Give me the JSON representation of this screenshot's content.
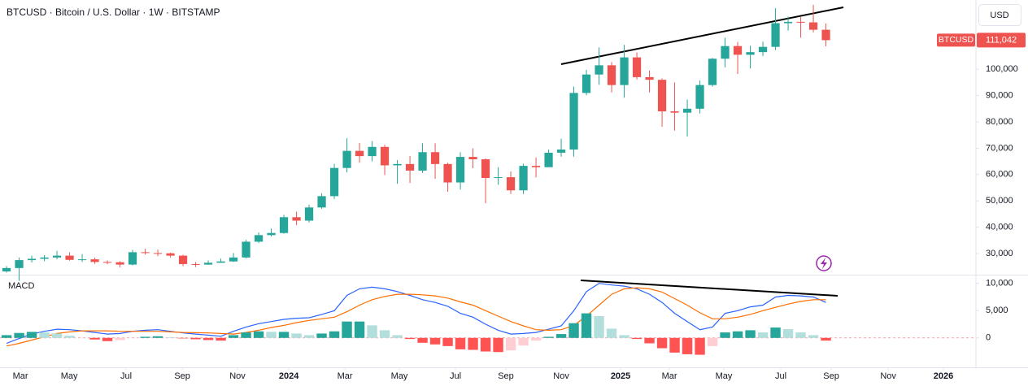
{
  "chart_data": [
    {
      "type": "candlestick",
      "title": "BTCUSD · Bitcoin / U.S. Dollar · 1W · BITSTAMP",
      "currency": "USD",
      "symbol": "BTCUSD",
      "last_label": "111,042",
      "up_color": "#26a69a",
      "down_color": "#ef5350",
      "xlim": [
        -0.52,
        76.9
      ],
      "ylim": [
        21975,
        126300
      ],
      "xticks": [
        {
          "value": 1.1,
          "label": "Mar"
        },
        {
          "value": 4.97,
          "label": "May"
        },
        {
          "value": 9.48,
          "label": "Jul"
        },
        {
          "value": 13.94,
          "label": "Sep"
        },
        {
          "value": 18.32,
          "label": "Nov"
        },
        {
          "value": 22.39,
          "label": "2024"
        },
        {
          "value": 26.84,
          "label": "Mar"
        },
        {
          "value": 31.16,
          "label": "May"
        },
        {
          "value": 35.61,
          "label": "Jul"
        },
        {
          "value": 39.61,
          "label": "Sep"
        },
        {
          "value": 44.0,
          "label": "Nov"
        },
        {
          "value": 48.71,
          "label": "2025"
        },
        {
          "value": 52.58,
          "label": "Mar"
        },
        {
          "value": 56.9,
          "label": "May"
        },
        {
          "value": 61.42,
          "label": "Jul"
        },
        {
          "value": 65.42,
          "label": "Sep"
        },
        {
          "value": 69.94,
          "label": "Nov"
        },
        {
          "value": 74.32,
          "label": "2026"
        }
      ],
      "yticks": [
        {
          "value": 30000,
          "label": "30,000"
        },
        {
          "value": 40000,
          "label": "40,000"
        },
        {
          "value": 50000,
          "label": "50,000"
        },
        {
          "value": 60000,
          "label": "60,000"
        },
        {
          "value": 70000,
          "label": "70,000"
        },
        {
          "value": 80000,
          "label": "80,000"
        },
        {
          "value": 90000,
          "label": "90,000"
        },
        {
          "value": 100000,
          "label": "100,000"
        }
      ],
      "open": [
        23200,
        24500,
        27500,
        28000,
        28500,
        29200,
        27600,
        27800,
        26800,
        26700,
        25800,
        30500,
        30200,
        30100,
        29200,
        26000,
        25800,
        26500,
        27000,
        28500,
        34500,
        37000,
        37800,
        43800,
        42500,
        47500,
        51800,
        62500,
        69000,
        67000,
        70500,
        63500,
        64000,
        61500,
        68500,
        64000,
        57000,
        66700,
        65800,
        58700,
        59000,
        54000,
        63300,
        62800,
        68300,
        69500,
        91000,
        98000,
        101500,
        94000,
        104500,
        97000,
        96000,
        84000,
        83500,
        85000,
        94000,
        104000,
        108800,
        105500,
        106500,
        108500,
        117500,
        118000,
        117800,
        115000
      ],
      "high": [
        25200,
        28500,
        29200,
        29400,
        31000,
        30500,
        29800,
        28400,
        27400,
        27100,
        31400,
        31800,
        31500,
        30300,
        29500,
        26800,
        27400,
        28100,
        30200,
        35200,
        38000,
        39500,
        44700,
        45900,
        48600,
        52900,
        64000,
        73800,
        72000,
        72700,
        71300,
        65500,
        67000,
        71900,
        71900,
        64500,
        68500,
        70000,
        66100,
        62800,
        61200,
        64100,
        66500,
        69500,
        73600,
        93400,
        99800,
        108300,
        102700,
        109300,
        106400,
        99500,
        96500,
        95000,
        88500,
        95700,
        104300,
        112000,
        110400,
        108900,
        110500,
        123200,
        120000,
        119800,
        124500,
        117400
      ],
      "low": [
        22800,
        19600,
        26600,
        27100,
        27800,
        27300,
        26800,
        26100,
        25900,
        24800,
        25500,
        29600,
        29000,
        28500,
        25200,
        24900,
        25700,
        26500,
        26800,
        28200,
        34000,
        36500,
        37500,
        40800,
        41800,
        47000,
        50700,
        60800,
        64500,
        65000,
        59800,
        56500,
        56800,
        60600,
        58400,
        53500,
        54300,
        62400,
        49100,
        56100,
        52600,
        52600,
        58900,
        62800,
        66800,
        66800,
        90100,
        94100,
        91200,
        89200,
        96100,
        91200,
        78200,
        76700,
        74400,
        83200,
        93400,
        100700,
        98200,
        100300,
        105000,
        107300,
        114700,
        112000,
        114000,
        108700
      ],
      "close": [
        24500,
        27500,
        28000,
        28500,
        29200,
        27600,
        27800,
        26800,
        26700,
        25800,
        30500,
        30200,
        30100,
        29200,
        26000,
        25800,
        26500,
        27000,
        28500,
        34500,
        37000,
        37800,
        43800,
        42500,
        47500,
        51800,
        62500,
        69000,
        67000,
        70500,
        63500,
        64000,
        61500,
        68500,
        64000,
        57000,
        66700,
        65800,
        58700,
        59000,
        54000,
        63300,
        62800,
        68300,
        69500,
        91000,
        98000,
        101500,
        94000,
        104500,
        97000,
        96000,
        84000,
        83500,
        85000,
        94000,
        104000,
        108800,
        105500,
        106500,
        108500,
        117500,
        118000,
        117800,
        115000,
        111042
      ]
    },
    {
      "type": "macd",
      "title": "MACD",
      "ylim": [
        -5400,
        11300
      ],
      "yticks": [
        0,
        {
          "value": 5000,
          "label": "5,000"
        },
        {
          "value": 10000,
          "label": "10,000"
        }
      ],
      "series": [
        {
          "color": "#2962ff",
          "values": [
            -1000,
            -100,
            700,
            1200,
            1600,
            1500,
            1300,
            1000,
            700,
            800,
            1200,
            1400,
            1500,
            1200,
            900,
            700,
            500,
            300,
            1200,
            2000,
            2600,
            3000,
            3400,
            3600,
            3700,
            4300,
            5000,
            7800,
            9000,
            9300,
            9000,
            8500,
            7800,
            7000,
            6500,
            5800,
            4500,
            3800,
            2500,
            1400,
            700,
            800,
            1000,
            1600,
            2200,
            5000,
            8500,
            10000,
            9700,
            9500,
            9000,
            8000,
            6500,
            4500,
            3000,
            1500,
            2000,
            4500,
            5000,
            5700,
            6000,
            7500,
            7800,
            7700,
            7500,
            6500
          ]
        },
        {
          "color": "#ff6d00",
          "values": [
            -1500,
            -1000,
            -400,
            200,
            800,
            1100,
            1300,
            1300,
            1300,
            1200,
            1200,
            1200,
            1200,
            1100,
            1000,
            950,
            900,
            800,
            700,
            1000,
            1400,
            1900,
            2300,
            2800,
            3200,
            3500,
            3800,
            4800,
            6000,
            7000,
            7600,
            8000,
            8000,
            7900,
            7700,
            7300,
            6600,
            6000,
            5000,
            4000,
            3000,
            2200,
            1500,
            1400,
            1500,
            2300,
            4000,
            6000,
            8000,
            9000,
            9200,
            9000,
            8400,
            7200,
            6000,
            4600,
            3500,
            3500,
            3800,
            4300,
            5000,
            5600,
            6200,
            6700,
            7000,
            7000
          ]
        },
        {
          "type": "histogram",
          "colors": [
            "#26a69a",
            "#b2dfdb",
            "#ff5252",
            "#ffcdd2"
          ],
          "values": [
            500,
            900,
            1100,
            1000,
            800,
            400,
            0,
            -300,
            -600,
            -400,
            0,
            200,
            300,
            100,
            -100,
            -250,
            -400,
            -500,
            500,
            1000,
            1200,
            1100,
            1100,
            800,
            500,
            800,
            1200,
            3000,
            3000,
            2300,
            1400,
            500,
            -200,
            -900,
            -1200,
            -1500,
            -2100,
            -2200,
            -2500,
            -2600,
            -2300,
            -1400,
            -500,
            200,
            700,
            2700,
            4500,
            4000,
            1700,
            500,
            -200,
            -1000,
            -1900,
            -2700,
            -3000,
            -3100,
            -1500,
            1000,
            1200,
            1400,
            1000,
            1900,
            1600,
            1000,
            500,
            -500
          ]
        }
      ]
    }
  ]
}
